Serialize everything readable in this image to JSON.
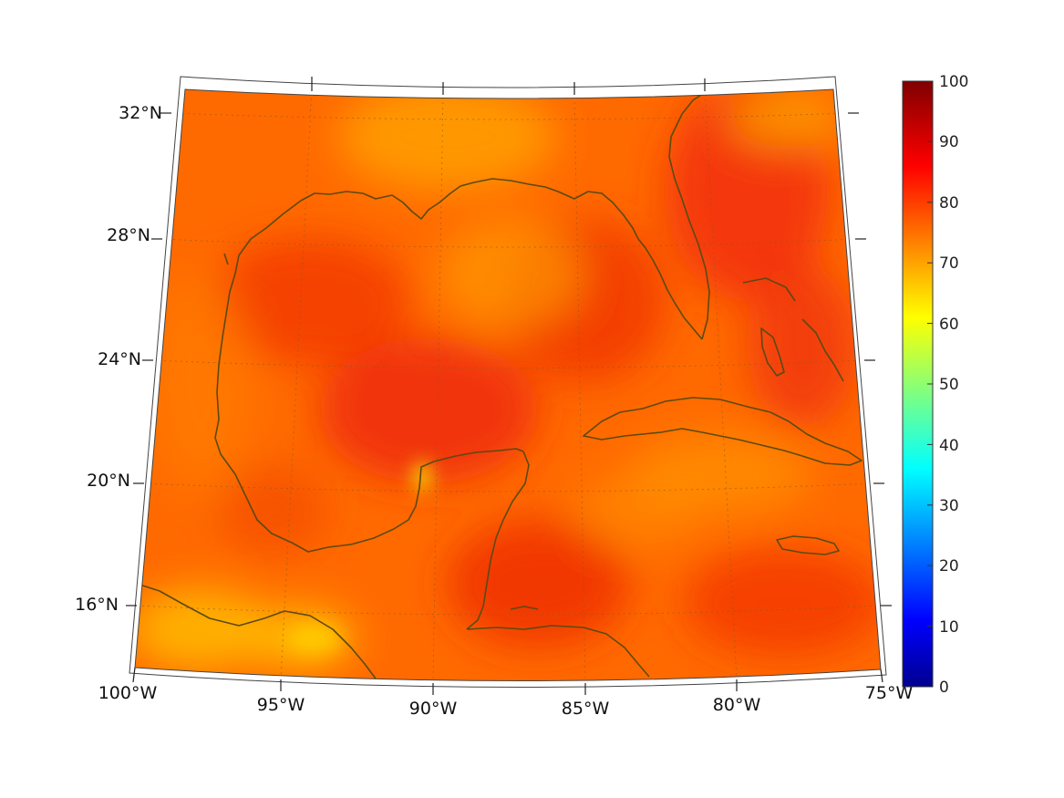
{
  "map": {
    "projection": "conic",
    "region": "Gulf of Mexico and Caribbean",
    "lon_range": [
      -100,
      -75
    ],
    "lat_range": [
      14,
      33
    ],
    "lat_tick_labels": [
      "32°N",
      "28°N",
      "24°N",
      "20°N",
      "16°N"
    ],
    "lon_tick_labels": [
      "100°W",
      "95°W",
      "90°W",
      "85°W",
      "80°W",
      "75°W"
    ],
    "coast_color": "#5b4a12",
    "gridline_style": "dotted",
    "field_colors": {
      "base": "#ff6a00",
      "warm": "#f43a08",
      "cool": "#ffa800",
      "yellow": "#f4e000"
    }
  },
  "colorbar": {
    "colormap": "jet",
    "range": [
      0,
      100
    ],
    "tick_labels": [
      "100",
      "90",
      "80",
      "70",
      "60",
      "50",
      "40",
      "30",
      "20",
      "10",
      "0"
    ]
  }
}
